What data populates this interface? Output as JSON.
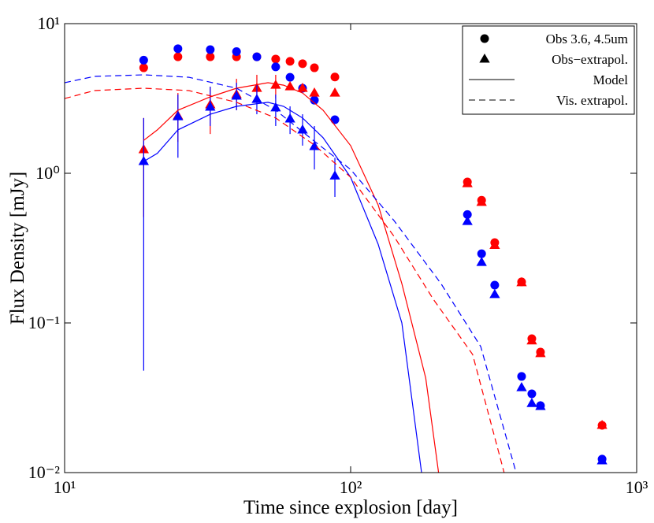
{
  "chart_data": {
    "type": "scatter",
    "xlabel": "Time since explosion [day]",
    "ylabel": "Flux Density [mJy]",
    "xlog": true,
    "ylog": true,
    "xlim": [
      10,
      1000
    ],
    "ylim": [
      0.01,
      10
    ],
    "xticks": [
      {
        "value": 10,
        "label": "10¹"
      },
      {
        "value": 100,
        "label": "10²"
      },
      {
        "value": 1000,
        "label": "10³"
      }
    ],
    "yticks": [
      {
        "value": 0.01,
        "label": "10⁻²"
      },
      {
        "value": 0.1,
        "label": "10⁻¹"
      },
      {
        "value": 1,
        "label": "10⁰"
      },
      {
        "value": 10,
        "label": "10¹"
      }
    ],
    "legend_position": "upper right",
    "legend": [
      {
        "label": "Obs 3.6, 4.5um",
        "marker": "circle"
      },
      {
        "label": "Obs−extrapol.",
        "marker": "triangle"
      },
      {
        "label": "Model",
        "marker": "solid"
      },
      {
        "label": "Vis. extrapol.",
        "marker": "dashed"
      }
    ],
    "series": [
      {
        "kind": "circle",
        "color": "#ff0000",
        "x": [
          18.9,
          24.9,
          32.3,
          39.9,
          47.0,
          54.7,
          61.4,
          67.9,
          74.7,
          88.1,
          256,
          287,
          319,
          396,
          430,
          461,
          757
        ],
        "values": [
          5.07,
          6.0,
          6.0,
          6.0,
          6.0,
          5.8,
          5.6,
          5.4,
          5.07,
          4.4,
          0.875,
          0.66,
          0.344,
          0.188,
          0.0785,
          0.0639,
          0.0207
        ]
      },
      {
        "kind": "circle",
        "color": "#0000ff",
        "x": [
          18.9,
          24.9,
          32.3,
          39.9,
          47.0,
          54.7,
          61.4,
          67.9,
          74.7,
          88.1,
          256,
          287,
          319,
          396,
          430,
          461,
          757
        ],
        "values": [
          5.7,
          6.8,
          6.7,
          6.5,
          6.0,
          5.14,
          4.38,
          3.7,
          3.08,
          2.28,
          0.53,
          0.29,
          0.179,
          0.0439,
          0.0336,
          0.028,
          0.0123
        ]
      },
      {
        "kind": "triangle",
        "color": "#ff0000",
        "x": [
          18.9,
          24.9,
          32.3,
          39.9,
          47.0,
          54.7,
          61.4,
          67.9,
          74.7,
          88.1,
          256,
          287,
          319,
          396,
          430,
          461,
          757
        ],
        "values": [
          1.44,
          2.42,
          2.87,
          3.36,
          3.7,
          3.88,
          3.79,
          3.7,
          3.44,
          3.44,
          0.854,
          0.64,
          0.33,
          0.186,
          0.076,
          0.0625,
          0.0207
        ],
        "error_upper": [
          2.34,
          3.44,
          3.79,
          4.28,
          4.55,
          4.55,
          null,
          null,
          null,
          null,
          null,
          null,
          null,
          null,
          null,
          null,
          null
        ],
        "error_lower": [
          0.51,
          1.62,
          1.83,
          2.64,
          2.98,
          3.16,
          null,
          null,
          null,
          null,
          null,
          null,
          null,
          null,
          null,
          null,
          null
        ]
      },
      {
        "kind": "triangle",
        "color": "#0000ff",
        "x": [
          18.9,
          24.9,
          32.3,
          39.9,
          47.0,
          54.7,
          61.4,
          67.9,
          74.7,
          88.1,
          256,
          287,
          319,
          396,
          430,
          461,
          757
        ],
        "values": [
          1.2,
          2.39,
          2.77,
          3.28,
          3.12,
          2.74,
          2.31,
          1.95,
          1.51,
          0.96,
          0.477,
          0.254,
          0.155,
          0.037,
          0.029,
          0.0277,
          0.012
        ],
        "error_upper": [
          2.34,
          3.36,
          3.79,
          4.03,
          3.88,
          3.36,
          2.8,
          2.48,
          2.07,
          1.27,
          null,
          null,
          null,
          null,
          null,
          null,
          null
        ],
        "error_lower": [
          0.048,
          1.27,
          2.07,
          2.64,
          2.48,
          2.07,
          1.83,
          1.53,
          1.06,
          0.695,
          null,
          null,
          null,
          null,
          null,
          null,
          null
        ]
      },
      {
        "kind": "solid",
        "color": "#ff0000",
        "x": [
          18.9,
          21.1,
          24.9,
          32.3,
          39.9,
          51.4,
          58.3,
          67.9,
          80.1,
          100,
          124.8,
          151,
          183,
          203
        ],
        "values": [
          1.66,
          1.95,
          2.64,
          3.24,
          3.7,
          4.03,
          3.88,
          3.44,
          2.64,
          1.53,
          0.615,
          0.183,
          0.0428,
          0.01
        ]
      },
      {
        "kind": "solid",
        "color": "#0000ff",
        "x": [
          18.9,
          21.1,
          24.9,
          32.3,
          39.9,
          51.4,
          58.3,
          67.9,
          80.1,
          100,
          124.8,
          151,
          177
        ],
        "values": [
          1.2,
          1.36,
          1.95,
          2.48,
          2.8,
          2.98,
          2.8,
          2.34,
          1.73,
          0.94,
          0.336,
          0.1,
          0.01
        ]
      },
      {
        "kind": "dashed",
        "color": "#ff0000",
        "x": [
          10,
          12.7,
          18.9,
          27.2,
          39.9,
          54.7,
          75.2,
          100,
          141.8,
          194.5,
          267,
          344
        ],
        "values": [
          3.16,
          3.57,
          3.7,
          3.57,
          2.98,
          2.34,
          1.53,
          0.94,
          0.379,
          0.144,
          0.0616,
          0.01
        ]
      },
      {
        "kind": "dashed",
        "color": "#0000ff",
        "x": [
          10,
          12.7,
          18.9,
          27.2,
          39.9,
          54.7,
          75.2,
          100,
          141.8,
          207,
          285,
          379
        ],
        "values": [
          4.03,
          4.44,
          4.55,
          4.38,
          3.7,
          2.64,
          1.62,
          1.06,
          0.483,
          0.183,
          0.0695,
          0.01
        ]
      }
    ]
  }
}
